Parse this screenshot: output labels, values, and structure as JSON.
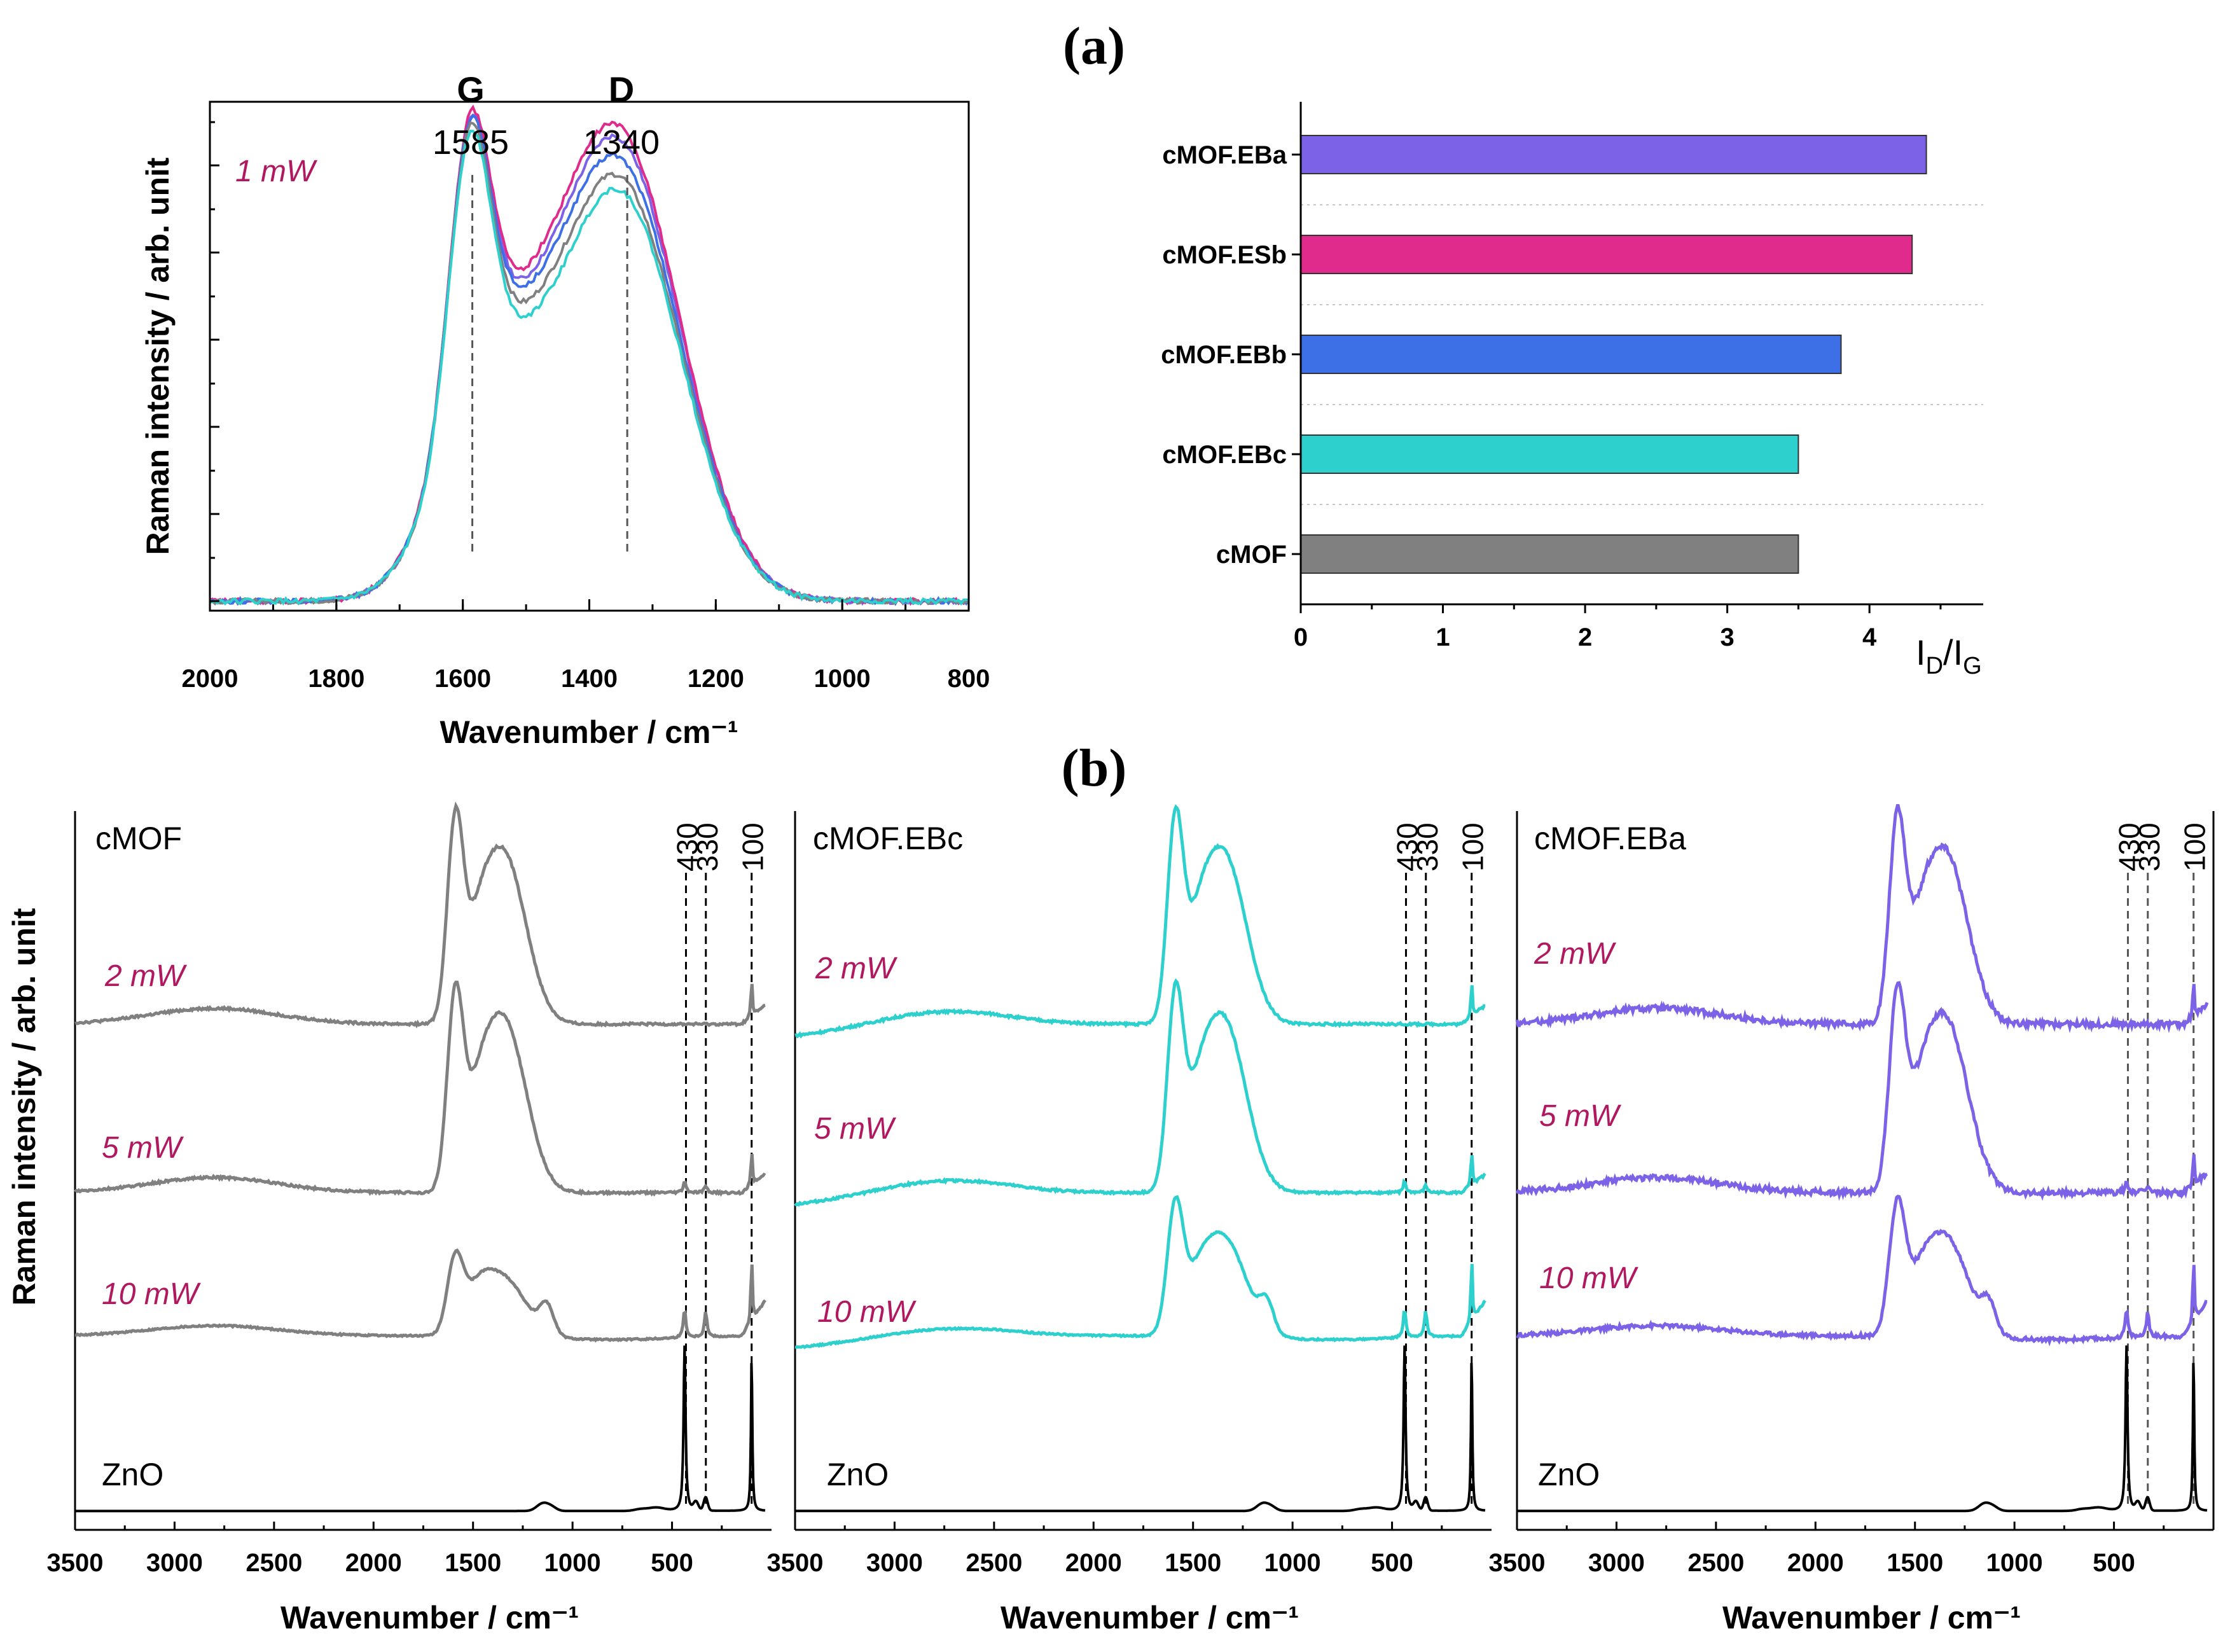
{
  "panel_labels": {
    "a": "(a)",
    "b": "(b)"
  },
  "colors": {
    "cMOF": "#808080",
    "cMOF.EBc": "#2dd0cd",
    "cMOF.EBb": "#3d6fe6",
    "cMOF.ESb": "#e02a8c",
    "cMOF.EBa": "#7b62e6",
    "ZnO": "#000000",
    "power_label": "#b0195f"
  },
  "chart_data": [
    {
      "id": "raman_1mw",
      "type": "line",
      "xlabel": "Wavenumber / cm⁻¹",
      "ylabel": "Raman intensity / arb. unit",
      "xlim": [
        2000,
        800
      ],
      "x_ticks": [
        2000,
        1800,
        1600,
        1400,
        1200,
        1000,
        800
      ],
      "annotation": "1 mW",
      "bands": [
        {
          "name": "G",
          "position": 1585,
          "label": "1585"
        },
        {
          "name": "D",
          "position": 1340,
          "label": "1340"
        }
      ],
      "series": [
        {
          "name": "cMOF.EBa",
          "D_over_G": 0.97,
          "valley": 0.69
        },
        {
          "name": "cMOF.ESb",
          "D_over_G": 0.99,
          "valley": 0.71
        },
        {
          "name": "cMOF.EBb",
          "D_over_G": 0.93,
          "valley": 0.68
        },
        {
          "name": "cMOF",
          "D_over_G": 0.9,
          "valley": 0.65
        },
        {
          "name": "cMOF.EBc",
          "D_over_G": 0.88,
          "valley": 0.62
        }
      ]
    },
    {
      "id": "id_ig_bar",
      "type": "bar",
      "orientation": "horizontal",
      "xlabel": "I",
      "xlabel_sub1": "D",
      "xlabel_mid": "/I",
      "xlabel_sub2": "G",
      "xlim": [
        0,
        4.8
      ],
      "x_ticks": [
        0,
        1,
        2,
        3,
        4
      ],
      "categories": [
        "cMOF.EBa",
        "cMOF.ESb",
        "cMOF.EBb",
        "cMOF.EBc",
        "cMOF"
      ],
      "values": [
        4.4,
        4.3,
        3.8,
        3.5,
        3.5
      ]
    },
    {
      "id": "panel_cMOF",
      "type": "line",
      "sample": "cMOF",
      "color_key": "cMOF",
      "xlim": [
        3500,
        0
      ],
      "x_ticks": [
        3500,
        3000,
        2500,
        2000,
        1500,
        1000,
        500
      ],
      "xlabel": "Wavenumber / cm⁻¹",
      "ylabel": "Raman intensity / arb. unit",
      "peak_markers": [
        430,
        330,
        100
      ],
      "powers": [
        "2 mW",
        "5 mW",
        "10 mW"
      ],
      "reference": "ZnO"
    },
    {
      "id": "panel_cMOF_EBc",
      "type": "line",
      "sample": "cMOF.EBc",
      "color_key": "cMOF.EBc",
      "xlim": [
        3500,
        0
      ],
      "x_ticks": [
        3500,
        3000,
        2500,
        2000,
        1500,
        1000,
        500
      ],
      "xlabel": "Wavenumber / cm⁻¹",
      "peak_markers": [
        430,
        330,
        100
      ],
      "powers": [
        "2 mW",
        "5 mW",
        "10 mW"
      ],
      "reference": "ZnO"
    },
    {
      "id": "panel_cMOF_EBa",
      "type": "line",
      "sample": "cMOF.EBa",
      "color_key": "cMOF.EBa",
      "xlim": [
        3500,
        0
      ],
      "x_ticks": [
        3500,
        3000,
        2500,
        2000,
        1500,
        1000,
        500
      ],
      "xlabel": "Wavenumber / cm⁻¹",
      "peak_markers": [
        430,
        330,
        100
      ],
      "powers": [
        "2 mW",
        "5 mW",
        "10 mW"
      ],
      "reference": "ZnO"
    }
  ]
}
